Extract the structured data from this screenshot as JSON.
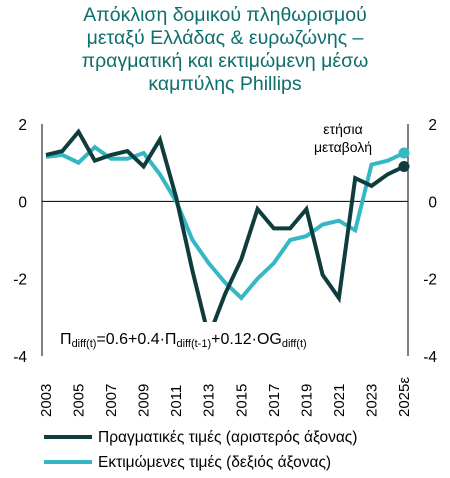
{
  "title_lines": [
    "Απόκλιση δομικού πληθωρισμού",
    "μεταξύ Ελλάδας & ευρωζώνης –",
    "πραγματική και εκτιμώμενη μέσω",
    "καμπύλης Phillips"
  ],
  "annotation_lines": [
    "ετήσια",
    "μεταβολή"
  ],
  "formula": {
    "p1": "Π",
    "s1": "diff(t)",
    "p2": "=0.6+0.4·Π",
    "s2": "diff(t-1)",
    "p3": "+0.12·OG",
    "s3": "diff(t)"
  },
  "colors": {
    "actual": "#0f3d3e",
    "estimated": "#35b7c4",
    "title": "#0e6e6e"
  },
  "chart_data": {
    "type": "line",
    "x": [
      "2003",
      "2004",
      "2005",
      "2006",
      "2007",
      "2008",
      "2009",
      "2010",
      "2011",
      "2012",
      "2013",
      "2014",
      "2015",
      "2016",
      "2017",
      "2018",
      "2019",
      "2020",
      "2021",
      "2022",
      "2023",
      "2024",
      "2025ε"
    ],
    "x_tick_labels": [
      "2003",
      "2005",
      "2007",
      "2009",
      "2011",
      "2013",
      "2015",
      "2017",
      "2019",
      "2021",
      "2023",
      "2025ε"
    ],
    "y_left_ticks": [
      "2",
      "0",
      "-2",
      "-4"
    ],
    "y_right_ticks": [
      "2",
      "0",
      "-2",
      "-4"
    ],
    "ylim": [
      -4,
      2
    ],
    "series": [
      {
        "name": "Πραγματικές τιμές (αριστερός άξονας)",
        "axis": "left",
        "values": [
          1.2,
          1.3,
          1.8,
          1.05,
          1.2,
          1.3,
          0.9,
          1.6,
          0.1,
          -1.8,
          -3.5,
          -2.4,
          -1.5,
          -0.2,
          -0.7,
          -0.7,
          -0.2,
          -1.9,
          -2.5,
          0.6,
          0.4,
          0.7,
          0.9
        ]
      },
      {
        "name": "Εκτιμώμενες τιμές (δεξιός άξονας)",
        "axis": "right",
        "values": [
          1.15,
          1.2,
          1.0,
          1.4,
          1.1,
          1.1,
          1.25,
          0.7,
          0.0,
          -1.0,
          -1.6,
          -2.1,
          -2.5,
          -2.0,
          -1.6,
          -1.0,
          -0.9,
          -0.6,
          -0.5,
          -0.75,
          0.95,
          1.05,
          1.25
        ]
      }
    ]
  }
}
